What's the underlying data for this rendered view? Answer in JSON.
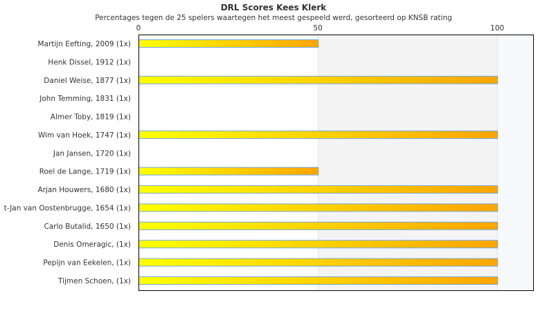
{
  "chart_data": {
    "type": "bar",
    "orientation": "horizontal",
    "title": "DRL Scores Kees Klerk",
    "subtitle": "Percentages tegen de 25 spelers waartegen het meest gespeeld werd, gesorteerd op KNSB rating",
    "categories": [
      "Martijn Eefting, 2009 (1x)",
      "Henk Dissel, 1912 (1x)",
      "Daniel Weise, 1877 (1x)",
      "John Temming, 1831 (1x)",
      "Almer Toby, 1819 (1x)",
      "Wim van Hoek, 1747 (1x)",
      "Jan Jansen, 1720 (1x)",
      "Roel de Lange, 1719 (1x)",
      "Arjan Houwers, 1680 (1x)",
      "t-Jan van Oostenbrugge, 1654 (1x)",
      "Carlo Butalid, 1650 (1x)",
      "Denis Omeragic,  (1x)",
      "Pepijn van Eekelen,  (1x)",
      "Tijmen Schoen,  (1x)"
    ],
    "values": [
      50,
      0,
      100,
      0,
      0,
      100,
      0,
      50,
      100,
      100,
      100,
      100,
      100,
      100
    ],
    "xlim": [
      0,
      110
    ],
    "xticks": [
      "0",
      "50",
      "100"
    ],
    "xtick_values": [
      0,
      50,
      100
    ],
    "bands": [
      {
        "from": 50,
        "to": 100,
        "color": "#f4f4f4"
      },
      {
        "from": 100,
        "to": 110,
        "color": "#f7fafd"
      }
    ],
    "bar_gradient": [
      "#ffff00",
      "#ffa500"
    ],
    "bar_border": "#6fa8dc",
    "grid": true,
    "legend": "none"
  }
}
